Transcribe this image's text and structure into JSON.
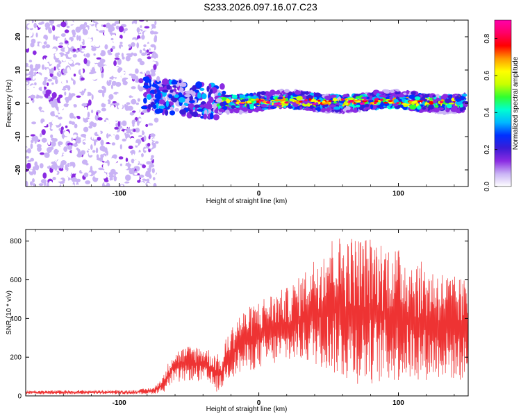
{
  "title": "S233.2026.097.16.07.C23",
  "chart_data": [
    {
      "type": "heatmap",
      "xlabel": "Height of straight line (km)",
      "ylabel": "Frequency (Hz)",
      "xlim": [
        -167,
        150
      ],
      "ylim": [
        -25,
        25
      ],
      "xticks": [
        -100,
        0,
        100
      ],
      "yticks": [
        -20,
        -10,
        0,
        10,
        20
      ],
      "xtick_labels": [
        "-100",
        "0",
        "100"
      ],
      "ytick_labels": [
        "-20",
        "-10",
        "0",
        "10",
        "20"
      ],
      "colorbar": {
        "label": "Normalized spectral amplitude",
        "range": [
          0.0,
          0.9
        ],
        "ticks": [
          0.0,
          0.2,
          0.4,
          0.6,
          0.8
        ],
        "tick_labels": [
          "0.0",
          "0.2",
          "0.4",
          "0.6",
          "0.8"
        ],
        "colormap": [
          "#ffffff",
          "#c9b3f5",
          "#8a2be2",
          "#3a1bd6",
          "#0030ff",
          "#00b8ff",
          "#00ffd0",
          "#30ff30",
          "#c8ff00",
          "#ffff00",
          "#ff9900",
          "#ff0000",
          "#ff0066",
          "#ff00aa"
        ]
      },
      "regions": [
        {
          "name": "noise",
          "x_range": [
            -167,
            -73
          ],
          "y_range": [
            -25,
            25
          ],
          "amplitude_range": [
            0.0,
            0.12
          ]
        },
        {
          "name": "transition-signal",
          "x_range": [
            -82,
            -25
          ],
          "frequency_hz": 3,
          "amplitude_range": [
            0.05,
            0.35
          ]
        },
        {
          "name": "main-signal",
          "x_range": [
            -30,
            148
          ],
          "frequency_hz": 0.5,
          "amplitude_range": [
            0.1,
            0.9
          ]
        }
      ]
    },
    {
      "type": "line",
      "title": "",
      "xlabel": "Height of straight line (km)",
      "ylabel": "SNR (10 * v/v)",
      "xlim": [
        -167,
        150
      ],
      "ylim": [
        0,
        860
      ],
      "xticks": [
        -100,
        0,
        100
      ],
      "yticks": [
        0,
        200,
        400,
        600,
        800
      ],
      "xtick_labels": [
        "-100",
        "0",
        "100"
      ],
      "ytick_labels": [
        "0",
        "200",
        "400",
        "600",
        "800"
      ],
      "color": "#ee3333",
      "envelope": {
        "x": [
          -167,
          -120,
          -90,
          -75,
          -68,
          -62,
          -50,
          -40,
          -30,
          -26,
          -24,
          -15,
          -5,
          5,
          20,
          30,
          40,
          50,
          60,
          70,
          80,
          90,
          100,
          110,
          120,
          130,
          140,
          150
        ],
        "low": [
          8,
          8,
          8,
          10,
          20,
          60,
          80,
          70,
          20,
          40,
          80,
          110,
          130,
          150,
          170,
          180,
          160,
          130,
          80,
          60,
          60,
          70,
          70,
          80,
          80,
          90,
          80,
          70
        ],
        "high": [
          28,
          30,
          30,
          45,
          110,
          230,
          260,
          260,
          220,
          190,
          290,
          420,
          470,
          520,
          560,
          620,
          720,
          820,
          830,
          830,
          820,
          800,
          760,
          720,
          680,
          650,
          620,
          600
        ]
      }
    }
  ]
}
